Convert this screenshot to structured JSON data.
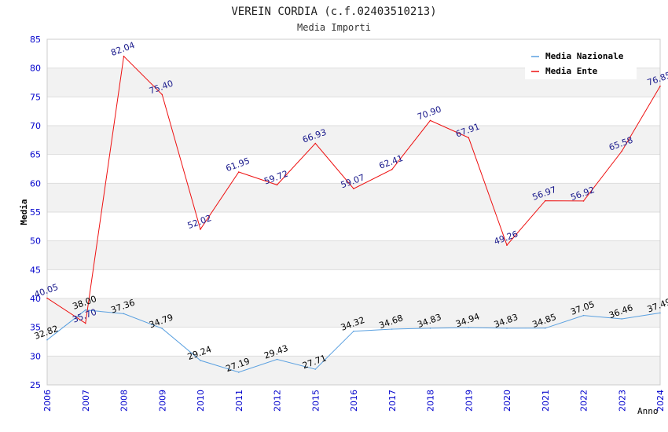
{
  "chart_data": {
    "type": "line",
    "title": "VEREIN CORDIA (c.f.02403510213)",
    "subtitle": "Media Importi",
    "xlabel": "Anno",
    "ylabel": "Media",
    "ylim": [
      25,
      85
    ],
    "yticks": [
      "25",
      "30",
      "35",
      "40",
      "45",
      "50",
      "55",
      "60",
      "65",
      "70",
      "75",
      "80",
      "85"
    ],
    "categories": [
      "2006",
      "2007",
      "2008",
      "2009",
      "2010",
      "2011",
      "2012",
      "2015",
      "2016",
      "2017",
      "2018",
      "2019",
      "2020",
      "2021",
      "2022",
      "2023",
      "2024"
    ],
    "legend_position": "top-right",
    "series": [
      {
        "name": "Media Nazionale",
        "color": "#5aa0e0",
        "label_color": "#000000",
        "values": [
          32.82,
          38.0,
          37.36,
          34.79,
          29.24,
          27.19,
          29.43,
          27.71,
          34.32,
          34.68,
          34.83,
          34.94,
          34.83,
          34.85,
          37.05,
          36.46,
          37.49
        ],
        "labels": [
          "32.82",
          "38.00",
          "37.36",
          "34.79",
          "29.24",
          "27.19",
          "29.43",
          "27.71",
          "34.32",
          "34.68",
          "34.83",
          "34.94",
          "34.83",
          "34.85",
          "37.05",
          "36.46",
          "37.49"
        ]
      },
      {
        "name": "Media Ente",
        "color": "#ee1111",
        "label_color": "#1a1a8c",
        "values": [
          40.05,
          35.7,
          82.04,
          75.4,
          52.02,
          61.95,
          59.72,
          66.93,
          59.07,
          62.41,
          70.9,
          67.91,
          49.26,
          56.97,
          56.92,
          65.58,
          76.85
        ],
        "labels": [
          "40.05",
          "35.70",
          "82.04",
          "75.40",
          "52.02",
          "61.95",
          "59.72",
          "66.93",
          "59.07",
          "62.41",
          "70.90",
          "67.91",
          "49.26",
          "56.97",
          "56.92",
          "65.58",
          "76.85"
        ]
      }
    ],
    "colors": {
      "axis_tick_text": "#0000cc",
      "band": "#f2f2f2",
      "grid": "#dddddd"
    }
  }
}
